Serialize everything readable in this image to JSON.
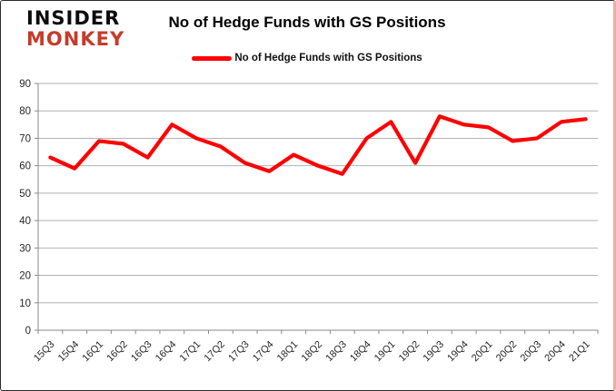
{
  "logo": {
    "line1": "INSIDER",
    "line2": "MONKEY",
    "color1": "#0c0c0c",
    "color2": "#c63b29"
  },
  "header": {
    "title": "No of Hedge Funds with GS Positions"
  },
  "legend": {
    "label": "No of Hedge Funds with GS Positions",
    "line_color": "#fe0000",
    "position": "top"
  },
  "chart_data": {
    "type": "line",
    "title": "No of Hedge Funds with GS Positions",
    "categories": [
      "15Q3",
      "15Q4",
      "16Q1",
      "16Q2",
      "16Q3",
      "16Q4",
      "17Q1",
      "17Q2",
      "17Q3",
      "17Q4",
      "18Q1",
      "18Q2",
      "18Q3",
      "18Q4",
      "19Q1",
      "19Q2",
      "19Q3",
      "19Q4",
      "20Q1",
      "20Q2",
      "20Q3",
      "20Q4",
      "21Q1"
    ],
    "series": [
      {
        "name": "No of Hedge Funds with GS Positions",
        "color": "#fe0000",
        "values": [
          63,
          59,
          69,
          68,
          63,
          75,
          70,
          67,
          61,
          58,
          64,
          60,
          57,
          70,
          76,
          61,
          78,
          75,
          74,
          69,
          70,
          76,
          77
        ]
      }
    ],
    "xlabel": "",
    "ylabel": "",
    "ylim": [
      0,
      90
    ],
    "ytick_interval": 10,
    "yticks": [
      0,
      10,
      20,
      30,
      40,
      50,
      60,
      70,
      80,
      90
    ],
    "grid": "horizontal",
    "grid_color": "#b2b2b2",
    "axis_color": "#898989",
    "text_color": "#262626",
    "legend_position": "top-center"
  }
}
